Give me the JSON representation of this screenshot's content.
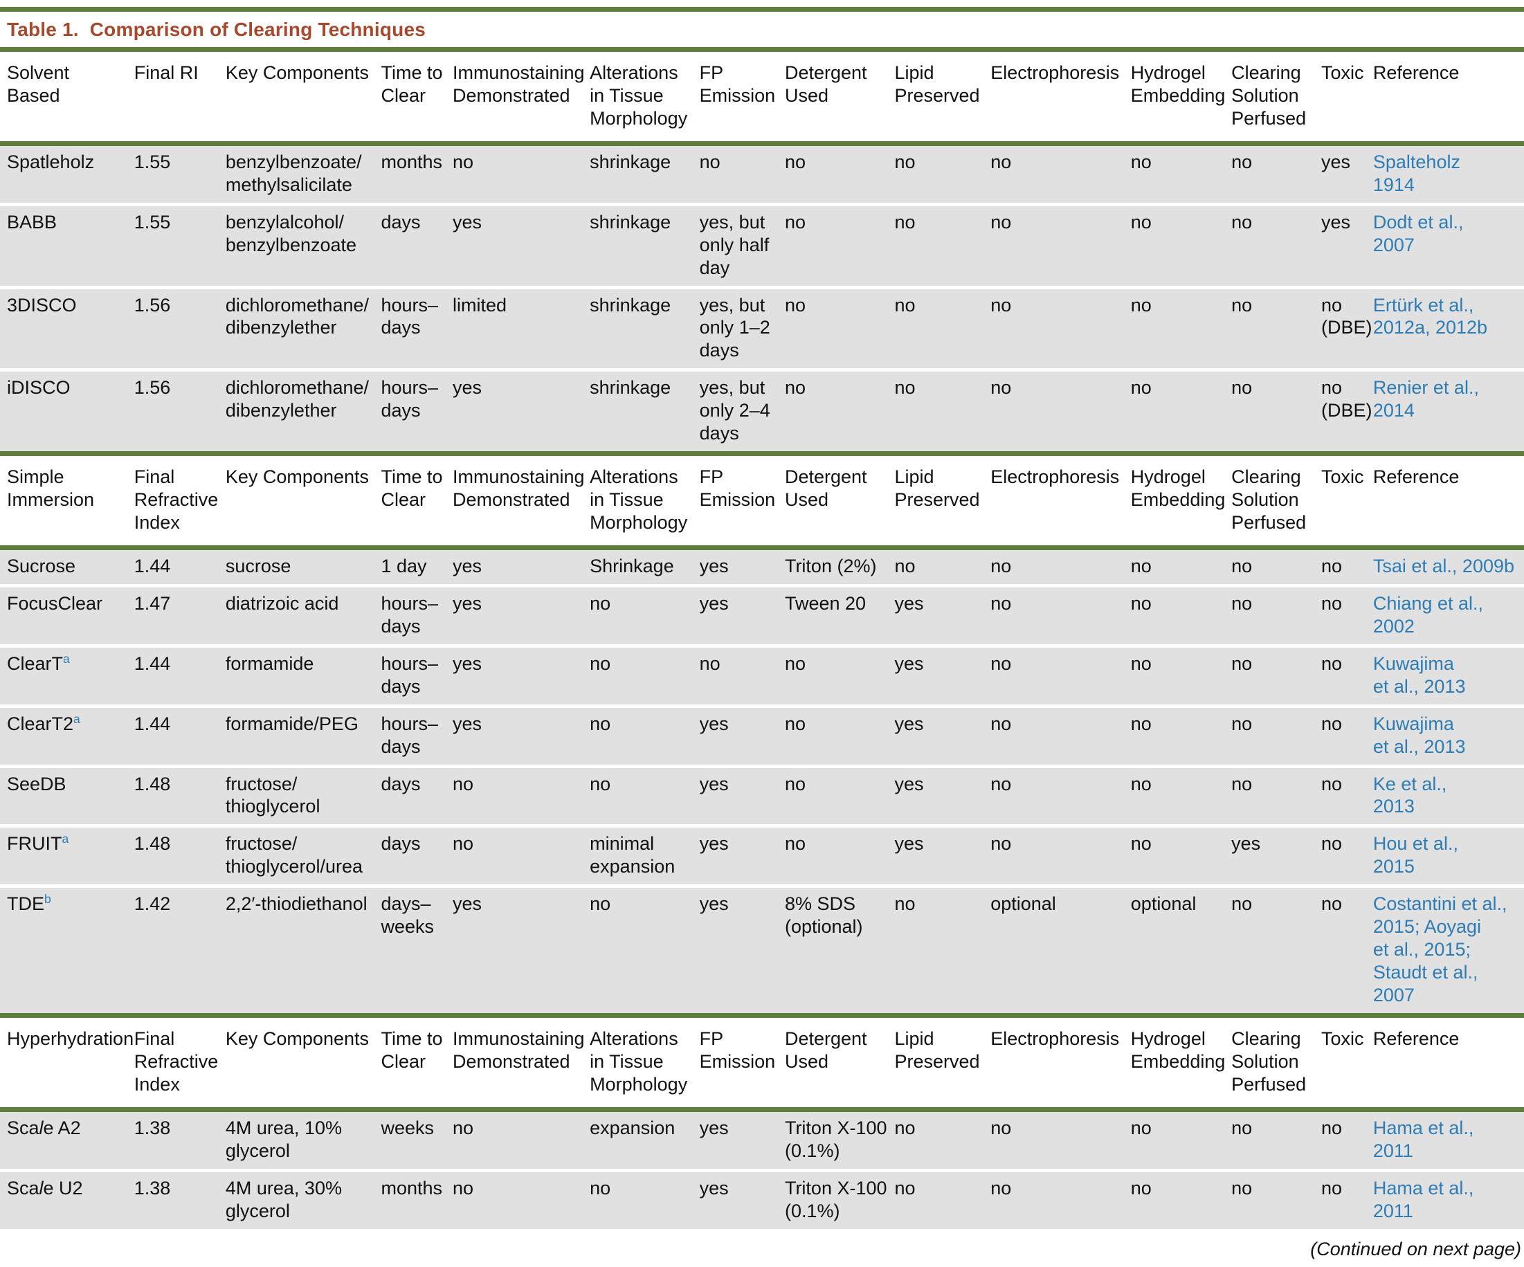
{
  "title": "Table 1.  Comparison of Clearing Techniques",
  "continued_note": "(Continued on next page)",
  "colors": {
    "rule_green": "#5e7e3c",
    "title_red": "#a8492e",
    "link_blue": "#2e7cb5",
    "row_gray": "#e1e1e1"
  },
  "column_keys": [
    "name",
    "final-ri",
    "key-components",
    "time-to-clear",
    "immunostaining",
    "alterations",
    "fp-emission",
    "detergent",
    "lipid-preserved",
    "electrophoresis",
    "hydrogel-embedding",
    "clearing-perfused",
    "toxic",
    "reference"
  ],
  "sections": [
    {
      "headers": [
        "Solvent Based",
        "Final RI",
        "Key Components",
        "Time to\nClear",
        "Immunostaining\nDemonstrated",
        "Alterations\nin Tissue\nMorphology",
        "FP\nEmission",
        "Detergent\nUsed",
        "Lipid\nPreserved",
        "Electrophoresis",
        "Hydrogel\nEmbedding",
        "Clearing\nSolution\nPerfused",
        "Toxic",
        "Reference"
      ],
      "rows": [
        [
          "Spatleholz",
          "1.55",
          "benzylbenzoate/\nmethylsalicilate",
          "months",
          "no",
          "shrinkage",
          "no",
          "no",
          "no",
          "no",
          "no",
          "no",
          "yes",
          "Spalteholz\n1914"
        ],
        [
          "BABB",
          "1.55",
          "benzylalcohol/\nbenzylbenzoate",
          "days",
          "yes",
          "shrinkage",
          "yes, but\nonly half\nday",
          "no",
          "no",
          "no",
          "no",
          "no",
          "yes",
          "Dodt et al.,\n2007"
        ],
        [
          "3DISCO",
          "1.56",
          "dichloromethane/\ndibenzylether",
          "hours–\ndays",
          "limited",
          "shrinkage",
          "yes, but\nonly 1–2\ndays",
          "no",
          "no",
          "no",
          "no",
          "no",
          "no\n(DBE)",
          "Ertürk et al.,\n2012a, 2012b"
        ],
        [
          "iDISCO",
          "1.56",
          "dichloromethane/\ndibenzylether",
          "hours–\ndays",
          "yes",
          "shrinkage",
          "yes, but\nonly 2–4\ndays",
          "no",
          "no",
          "no",
          "no",
          "no",
          "no\n(DBE)",
          "Renier et al.,\n2014"
        ]
      ]
    },
    {
      "headers": [
        "Simple\nImmersion",
        "Final\nRefractive\nIndex",
        "Key Components",
        "Time to\nClear",
        "Immunostaining\nDemonstrated",
        "Alterations\nin Tissue\nMorphology",
        "FP\nEmission",
        "Detergent\nUsed",
        "Lipid\nPreserved",
        "Electrophoresis",
        "Hydrogel\nEmbedding",
        "Clearing\nSolution\nPerfused",
        "Toxic",
        "Reference"
      ],
      "rows": [
        [
          "Sucrose",
          "1.44",
          "sucrose",
          "1 day",
          "yes",
          "Shrinkage",
          "yes",
          "Triton (2%)",
          "no",
          "no",
          "no",
          "no",
          "no",
          "Tsai et al., 2009b"
        ],
        [
          "FocusClear",
          "1.47",
          "diatrizoic acid",
          "hours–\ndays",
          "yes",
          "no",
          "yes",
          "Tween 20",
          "yes",
          "no",
          "no",
          "no",
          "no",
          "Chiang et al.,\n2002"
        ],
        [
          {
            "parts": [
              {
                "t": "ClearT"
              },
              {
                "t": "a",
                "sup": true
              }
            ]
          },
          "1.44",
          "formamide",
          "hours–\ndays",
          "yes",
          "no",
          "no",
          "no",
          "yes",
          "no",
          "no",
          "no",
          "no",
          "Kuwajima\net al., 2013"
        ],
        [
          {
            "parts": [
              {
                "t": "ClearT2"
              },
              {
                "t": "a",
                "sup": true
              }
            ]
          },
          "1.44",
          "formamide/PEG",
          "hours–\ndays",
          "yes",
          "no",
          "yes",
          "no",
          "yes",
          "no",
          "no",
          "no",
          "no",
          "Kuwajima\net al., 2013"
        ],
        [
          "SeeDB",
          "1.48",
          "fructose/\nthioglycerol",
          "days",
          "no",
          "no",
          "yes",
          "no",
          "yes",
          "no",
          "no",
          "no",
          "no",
          "Ke et al.,\n2013"
        ],
        [
          {
            "parts": [
              {
                "t": "FRUIT"
              },
              {
                "t": "a",
                "sup": true
              }
            ]
          },
          "1.48",
          "fructose/\nthioglycerol/urea",
          "days",
          "no",
          "minimal\nexpansion",
          "yes",
          "no",
          "yes",
          "no",
          "no",
          "yes",
          "no",
          "Hou et al.,\n2015"
        ],
        [
          {
            "parts": [
              {
                "t": "TDE"
              },
              {
                "t": "b",
                "sup": true
              }
            ]
          },
          "1.42",
          "2,2′-thiodiethanol",
          "days–\nweeks",
          "yes",
          "no",
          "yes",
          "8% SDS\n(optional)",
          "no",
          "optional",
          "optional",
          "no",
          "no",
          "Costantini et al.,\n2015; Aoyagi\net al., 2015;\nStaudt et al.,\n2007"
        ]
      ]
    },
    {
      "headers": [
        "Hyperhydration",
        "Final\nRefractive\nIndex",
        "Key Components",
        "Time to\nClear",
        "Immunostaining\nDemonstrated",
        "Alterations\nin Tissue\nMorphology",
        "FP\nEmission",
        "Detergent\nUsed",
        "Lipid\nPreserved",
        "Electrophoresis",
        "Hydrogel\nEmbedding",
        "Clearing\nSolution\nPerfused",
        "Toxic",
        "Reference"
      ],
      "rows": [
        [
          {
            "parts": [
              {
                "t": "Sca"
              },
              {
                "t": "l",
                "i": true
              },
              {
                "t": "e A2"
              }
            ]
          },
          "1.38",
          "4M urea, 10%\nglycerol",
          "weeks",
          "no",
          "expansion",
          "yes",
          "Triton X-100\n(0.1%)",
          "no",
          "no",
          "no",
          "no",
          "no",
          "Hama et al.,\n2011"
        ],
        [
          {
            "parts": [
              {
                "t": "Sca"
              },
              {
                "t": "l",
                "i": true
              },
              {
                "t": "e U2"
              }
            ]
          },
          "1.38",
          "4M urea, 30%\nglycerol",
          "months",
          "no",
          "no",
          "yes",
          "Triton X-100\n(0.1%)",
          "no",
          "no",
          "no",
          "no",
          "no",
          "Hama et al.,\n2011"
        ]
      ]
    }
  ]
}
